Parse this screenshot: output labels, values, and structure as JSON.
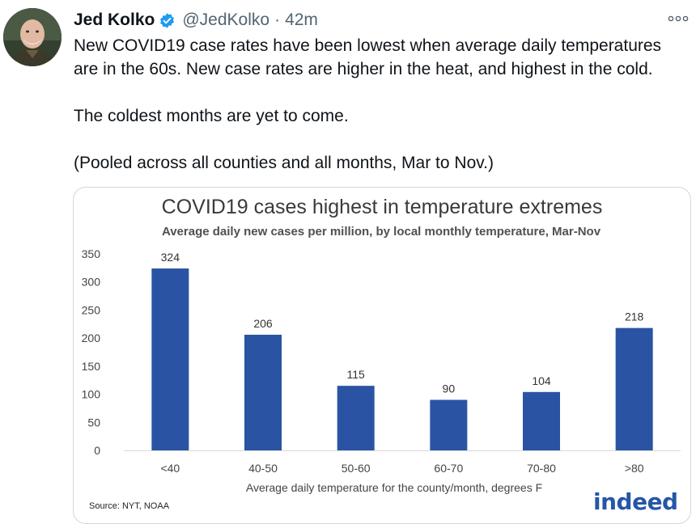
{
  "tweet": {
    "author_name": "Jed Kolko",
    "handle": "@JedKolko",
    "separator": "·",
    "time": "42m",
    "paragraphs": [
      "New COVID19 case rates have been lowest when average daily temperatures are in the 60s. New case rates are higher in the heat, and highest in the cold.",
      "The coldest months are yet to come.",
      "(Pooled across all counties and all months, Mar to Nov.)"
    ]
  },
  "icons": {
    "verified": "verified-badge-icon",
    "more": "more-options-icon",
    "avatar": "profile-photo"
  },
  "colors": {
    "accent": "#1d9bf0",
    "bar": "#2a54a3",
    "brand": "#2557a7"
  },
  "chart_data": {
    "type": "bar",
    "title": "COVID19 cases highest in temperature extremes",
    "subtitle": "Average daily new cases per million, by local monthly temperature, Mar-Nov",
    "xlabel": "Average daily temperature for the county/month, degrees F",
    "ylabel": "",
    "categories": [
      "<40",
      "40-50",
      "50-60",
      "60-70",
      "70-80",
      ">80"
    ],
    "values": [
      324,
      206,
      115,
      90,
      104,
      218
    ],
    "ylim": [
      0,
      350
    ],
    "yticks": [
      0,
      50,
      100,
      150,
      200,
      250,
      300,
      350
    ],
    "data_labels": true,
    "grid": false,
    "source": "Source: NYT, NOAA",
    "logo": "indeed"
  }
}
